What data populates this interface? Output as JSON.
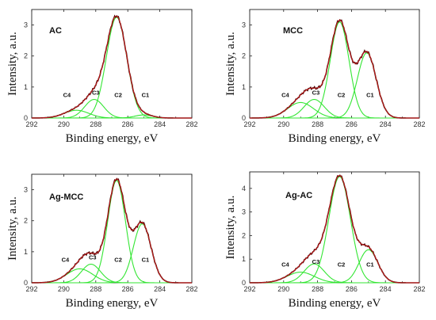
{
  "colors": {
    "experimental": "#4a0a0a",
    "envelope": "#cc1a1a",
    "components": "#33e633",
    "axes": "#222222"
  },
  "chart_data": [
    {
      "type": "line",
      "sample": "AC",
      "xlabel": "Binding energy, eV",
      "ylabel": "Intensity, a.u.",
      "xlim": [
        292,
        282
      ],
      "ylim": [
        0,
        3.5
      ],
      "xticks": [
        292,
        290,
        288,
        286,
        284,
        282
      ],
      "yticks": [
        0,
        1,
        2,
        3
      ],
      "components": [
        {
          "name": "C1",
          "center": 285.0,
          "height": 0.1,
          "fwhm": 1.3,
          "label_x": 284.9,
          "label_y": 0.68
        },
        {
          "name": "C2",
          "center": 286.7,
          "height": 3.25,
          "fwhm": 1.5,
          "label_x": 286.6,
          "label_y": 0.68
        },
        {
          "name": "C3",
          "center": 288.1,
          "height": 0.6,
          "fwhm": 1.4,
          "label_x": 288.0,
          "label_y": 0.75
        },
        {
          "name": "C4",
          "center": 289.2,
          "height": 0.25,
          "fwhm": 1.8,
          "label_x": 289.8,
          "label_y": 0.68
        }
      ],
      "grid": false
    },
    {
      "type": "line",
      "sample": "MCC",
      "xlabel": "Binding energy, eV",
      "ylabel": "Intensity, a.u.",
      "xlim": [
        292,
        282
      ],
      "ylim": [
        0,
        3.5
      ],
      "xticks": [
        292,
        290,
        288,
        286,
        284,
        282
      ],
      "yticks": [
        0,
        1,
        2,
        3
      ],
      "components": [
        {
          "name": "C1",
          "center": 285.1,
          "height": 2.1,
          "fwhm": 1.3,
          "label_x": 284.9,
          "label_y": 0.68
        },
        {
          "name": "C2",
          "center": 286.7,
          "height": 3.1,
          "fwhm": 1.3,
          "label_x": 286.6,
          "label_y": 0.68
        },
        {
          "name": "C3",
          "center": 288.2,
          "height": 0.6,
          "fwhm": 1.4,
          "label_x": 288.1,
          "label_y": 0.75
        },
        {
          "name": "C4",
          "center": 289.0,
          "height": 0.5,
          "fwhm": 1.8,
          "label_x": 289.9,
          "label_y": 0.68
        }
      ],
      "grid": false
    },
    {
      "type": "line",
      "sample": "Ag-MCC",
      "xlabel": "Binding energy, eV",
      "ylabel": "Intensity, a.u.",
      "xlim": [
        292,
        282
      ],
      "ylim": [
        0,
        3.5
      ],
      "xticks": [
        292,
        290,
        288,
        286,
        284,
        282
      ],
      "yticks": [
        0,
        1,
        2,
        3
      ],
      "components": [
        {
          "name": "C1",
          "center": 285.1,
          "height": 1.9,
          "fwhm": 1.3,
          "label_x": 284.9,
          "label_y": 0.68
        },
        {
          "name": "C2",
          "center": 286.7,
          "height": 3.3,
          "fwhm": 1.3,
          "label_x": 286.6,
          "label_y": 0.68
        },
        {
          "name": "C3",
          "center": 288.3,
          "height": 0.6,
          "fwhm": 1.4,
          "label_x": 288.2,
          "label_y": 0.75
        },
        {
          "name": "C4",
          "center": 289.0,
          "height": 0.45,
          "fwhm": 1.9,
          "label_x": 289.9,
          "label_y": 0.68
        }
      ],
      "grid": false
    },
    {
      "type": "line",
      "sample": "Ag-AC",
      "xlabel": "Binding energy, eV",
      "ylabel": "Intensity, a.u.",
      "xlim": [
        292,
        282
      ],
      "ylim": [
        0,
        4.7
      ],
      "xticks": [
        292,
        290,
        288,
        286,
        284,
        282
      ],
      "yticks": [
        0,
        1,
        2,
        3,
        4
      ],
      "components": [
        {
          "name": "C1",
          "center": 285.0,
          "height": 1.4,
          "fwhm": 1.3,
          "label_x": 284.9,
          "label_y": 0.68
        },
        {
          "name": "C2",
          "center": 286.7,
          "height": 4.5,
          "fwhm": 1.5,
          "label_x": 286.6,
          "label_y": 0.68
        },
        {
          "name": "C3",
          "center": 288.2,
          "height": 0.8,
          "fwhm": 1.4,
          "label_x": 288.1,
          "label_y": 0.8
        },
        {
          "name": "C4",
          "center": 289.0,
          "height": 0.45,
          "fwhm": 1.9,
          "label_x": 289.9,
          "label_y": 0.68
        }
      ],
      "grid": false
    }
  ]
}
